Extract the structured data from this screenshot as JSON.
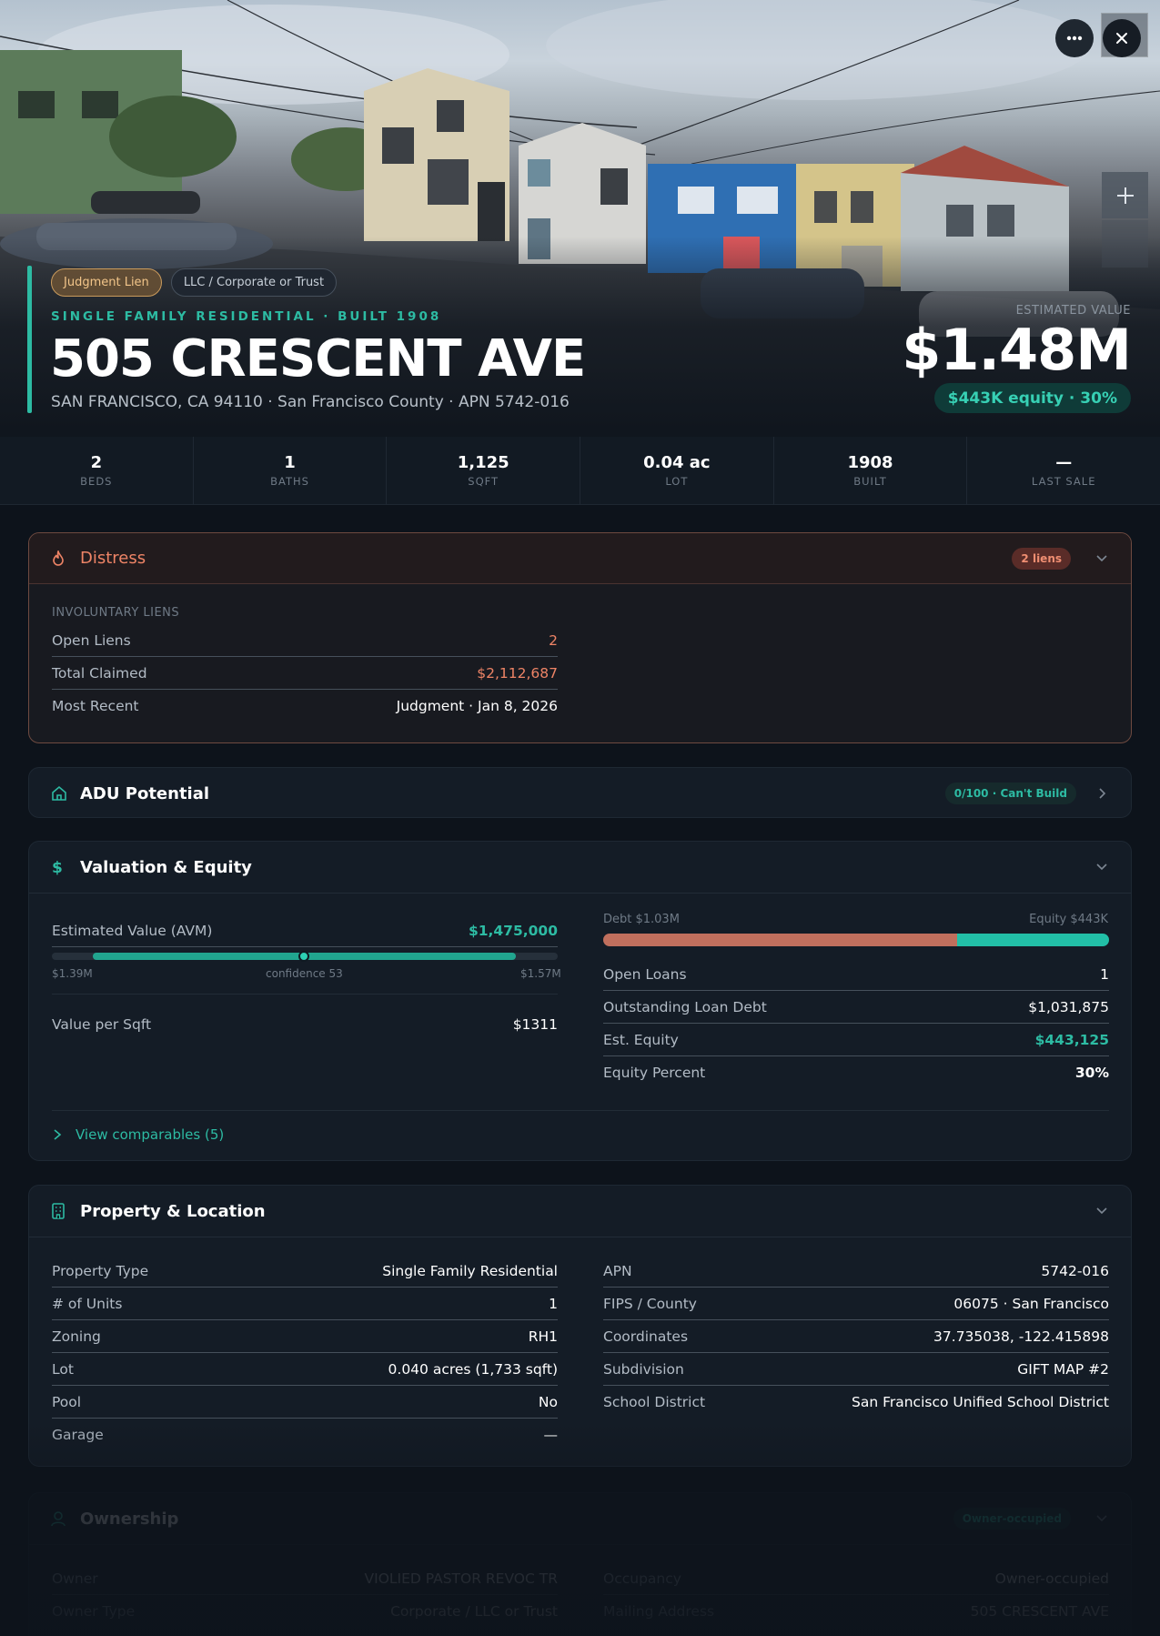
{
  "hero": {
    "tags": [
      "Judgment Lien",
      "LLC / Corporate or Trust"
    ],
    "eyebrow": "SINGLE FAMILY RESIDENTIAL · BUILT 1908",
    "address": "505 CRESCENT AVE",
    "subaddress": "SAN FRANCISCO, CA 94110 · San Francisco County · APN 5742-016",
    "estimated_value_label": "ESTIMATED VALUE",
    "estimated_value": "$1.48M",
    "equity_pill": "$443K equity · 30%",
    "icons": {
      "more": "more-horizontal-icon",
      "close": "close-icon",
      "zoom_in": "plus-icon"
    }
  },
  "stats": [
    {
      "value": "2",
      "label": "BEDS"
    },
    {
      "value": "1",
      "label": "BATHS"
    },
    {
      "value": "1,125",
      "label": "SQFT"
    },
    {
      "value": "0.04 ac",
      "label": "LOT"
    },
    {
      "value": "1908",
      "label": "BUILT"
    },
    {
      "value": "—",
      "label": "LAST SALE"
    }
  ],
  "distress": {
    "title": "Distress",
    "badge": "2 liens",
    "section_label": "INVOLUNTARY LIENS",
    "rows": [
      {
        "key": "Open Liens",
        "value": "2"
      },
      {
        "key": "Total Claimed",
        "value": "$2,112,687"
      },
      {
        "key": "Most Recent",
        "value": "Judgment · Jan 8, 2026"
      }
    ],
    "colors": {
      "accent": "#ee8466"
    }
  },
  "adu": {
    "title": "ADU Potential",
    "badge": "0/100 · Can't Build"
  },
  "valuation": {
    "title": "Valuation & Equity",
    "avm_label": "Estimated Value (AVM)",
    "avm_value": "$1,475,000",
    "range_low": "$1.39M",
    "confidence": "confidence 53",
    "range_high": "$1.57M",
    "value_per_sqft_label": "Value per Sqft",
    "value_per_sqft": "$1311",
    "debt_label": "Debt $1.03M",
    "equity_label": "Equity $443K",
    "debt_fraction": 0.7,
    "rows": [
      {
        "key": "Open Loans",
        "value": "1"
      },
      {
        "key": "Outstanding Loan Debt",
        "value": "$1,031,875"
      },
      {
        "key": "Est. Equity",
        "value": "$443,125"
      },
      {
        "key": "Equity Percent",
        "value": "30%"
      }
    ],
    "comparables_link": "View comparables (5)"
  },
  "property": {
    "title": "Property & Location",
    "left_rows": [
      {
        "key": "Property Type",
        "value": "Single Family Residential"
      },
      {
        "key": "# of Units",
        "value": "1"
      },
      {
        "key": "Zoning",
        "value": "RH1"
      },
      {
        "key": "Lot",
        "value": "0.040 acres (1,733 sqft)"
      },
      {
        "key": "Pool",
        "value": "No"
      },
      {
        "key": "Garage",
        "value": "—"
      }
    ],
    "right_rows": [
      {
        "key": "APN",
        "value": "5742-016"
      },
      {
        "key": "FIPS / County",
        "value": "06075 · San Francisco"
      },
      {
        "key": "Coordinates",
        "value": "37.735038, -122.415898"
      },
      {
        "key": "Subdivision",
        "value": "GIFT MAP #2"
      },
      {
        "key": "School District",
        "value": "San Francisco Unified School District"
      }
    ]
  },
  "ownership": {
    "title": "Ownership",
    "badge": "Owner-occupied",
    "left_rows": [
      {
        "key": "Owner",
        "value": "VIOLIED PASTOR REVOC TR"
      },
      {
        "key": "Owner Type",
        "value": "Corporate / LLC or Trust"
      }
    ],
    "right_rows": [
      {
        "key": "Occupancy",
        "value": "Owner-occupied"
      },
      {
        "key": "Mailing Address",
        "value": "505 CRESCENT AVE"
      }
    ]
  }
}
